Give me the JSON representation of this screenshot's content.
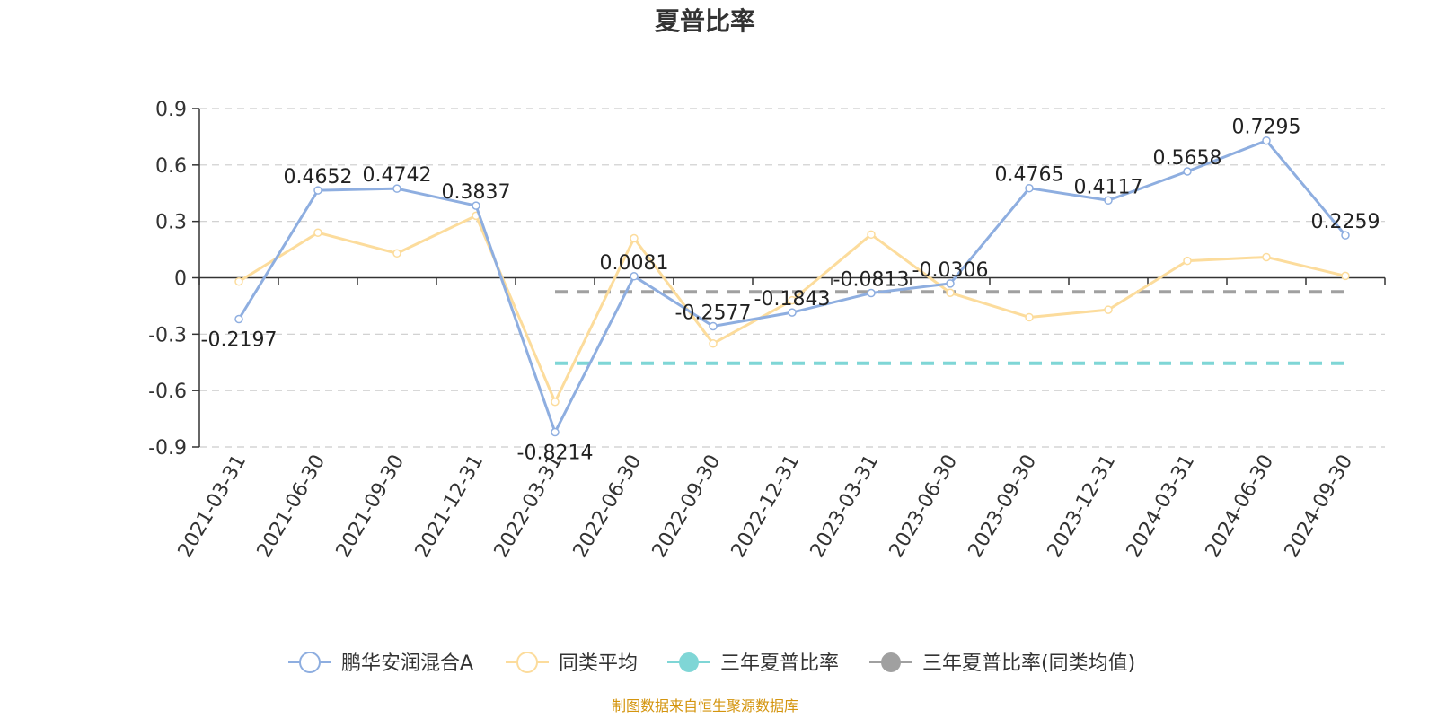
{
  "chart_data": {
    "type": "line",
    "title": "夏普比率",
    "categories": [
      "2021-03-31",
      "2021-06-30",
      "2021-09-30",
      "2021-12-31",
      "2022-03-31",
      "2022-06-30",
      "2022-09-30",
      "2022-12-31",
      "2023-03-31",
      "2023-06-30",
      "2023-09-30",
      "2023-12-31",
      "2024-03-31",
      "2024-06-30",
      "2024-09-30"
    ],
    "y_ticks": [
      "0.9",
      "0.6",
      "0.3",
      "0",
      "-0.3",
      "-0.6",
      "-0.9"
    ],
    "ylim": [
      -0.9,
      0.9
    ],
    "grid": true,
    "legend_position": "bottom",
    "series": [
      {
        "name": "鹏华安润混合A",
        "color": "#8eaee0",
        "values": [
          -0.2197,
          0.4652,
          0.4742,
          0.3837,
          -0.8214,
          0.0081,
          -0.2577,
          -0.1843,
          -0.0813,
          -0.0306,
          0.4765,
          0.4117,
          0.5658,
          0.7295,
          0.2259
        ],
        "labels": [
          "-0.2197",
          "0.4652",
          "0.4742",
          "0.3837",
          "-0.8214",
          "0.0081",
          "-0.2577",
          "-0.1843",
          "-0.0813",
          "-0.0306",
          "0.4765",
          "0.4117",
          "0.5658",
          "0.7295",
          "0.2259"
        ]
      },
      {
        "name": "同类平均",
        "color": "#fcdc9c",
        "values": [
          -0.02,
          0.24,
          0.13,
          0.33,
          -0.66,
          0.21,
          -0.35,
          -0.12,
          0.23,
          -0.08,
          -0.21,
          -0.17,
          0.09,
          0.11,
          0.01
        ]
      }
    ],
    "reference_lines": [
      {
        "name": "三年夏普比率",
        "color": "#7fd6d6",
        "value": -0.455,
        "from_index": 4,
        "to_index": 14
      },
      {
        "name": "三年夏普比率(同类均值)",
        "color": "#a0a0a0",
        "value": -0.075,
        "from_index": 4,
        "to_index": 14
      }
    ]
  },
  "legend": {
    "items": [
      "鹏华安润混合A",
      "同类平均",
      "三年夏普比率",
      "三年夏普比率(同类均值)"
    ]
  },
  "source": "制图数据来自恒生聚源数据库"
}
